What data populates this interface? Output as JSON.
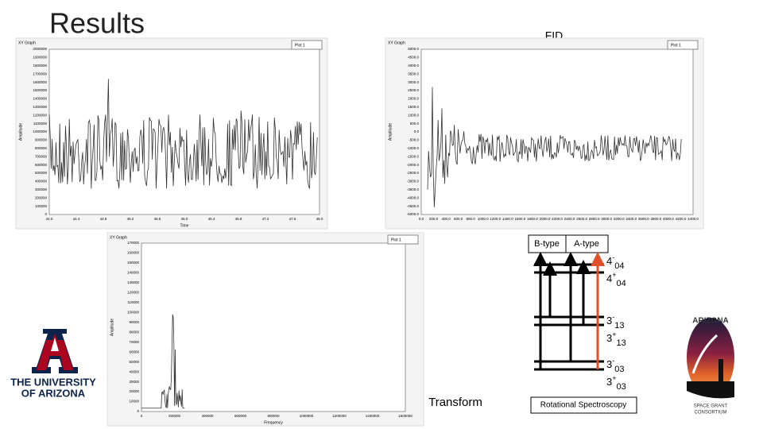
{
  "header": {
    "title": "Results"
  },
  "fid_label": "FID",
  "transform_label": "Transform",
  "plots": [
    {
      "title": "XY Graph",
      "legend": "Plot 1",
      "y_label": "Amplitude",
      "x_label": "Time",
      "yticks": [
        "0",
        "100000",
        "200000",
        "300000",
        "400000",
        "500000",
        "600000",
        "700000",
        "800000",
        "900000",
        "1000000",
        "1100000",
        "1200000",
        "1300000",
        "1400000",
        "1500000",
        "1600000",
        "1700000",
        "1800000",
        "1900000",
        "2000000"
      ],
      "xticks": [
        "44.0",
        "44.4",
        "44.8",
        "45.2",
        "45.6",
        "46.0",
        "46.4",
        "46.8",
        "47.2",
        "47.6",
        "48.0"
      ]
    },
    {
      "title": "XY Graph",
      "legend": "Plot 1",
      "y_label": "Amplitude",
      "x_label": "",
      "yticks": [
        "-5000.0",
        "-4500.0",
        "-4000.0",
        "-3500.0",
        "-3000.0",
        "-2500.0",
        "-2000.0",
        "-1500.0",
        "-1000.0",
        "-500.0",
        "0.0",
        "500.0",
        "1000.0",
        "1500.0",
        "2000.0",
        "2500.0",
        "3000.0",
        "3500.0",
        "4000.0",
        "4500.0",
        "5000.0"
      ],
      "xticks": [
        "0.0",
        "200.0",
        "400.0",
        "600.0",
        "800.0",
        "1000.0",
        "1200.0",
        "1400.0",
        "1600.0",
        "1800.0",
        "2000.0",
        "2200.0",
        "2400.0",
        "2600.0",
        "2800.0",
        "3000.0",
        "3200.0",
        "3400.0",
        "3600.0",
        "3800.0",
        "4000.0",
        "4200.0",
        "4400.0"
      ]
    },
    {
      "title": "XY Graph",
      "legend": "Plot 1",
      "y_label": "Amplitude",
      "x_label": "Frequency",
      "yticks": [
        "0",
        "10000",
        "20000",
        "30000",
        "40000",
        "50000",
        "60000",
        "70000",
        "80000",
        "90000",
        "100000",
        "110000",
        "120000",
        "130000",
        "140000",
        "150000",
        "160000",
        "170000"
      ],
      "xticks": [
        "0",
        "200000",
        "400000",
        "600000",
        "800000",
        "1000000",
        "1200000",
        "1400000",
        "1600000"
      ]
    }
  ],
  "diagram": {
    "b_type": "B-type",
    "a_type": "A-type",
    "levels": [
      {
        "main": "4",
        "sup": "-",
        "sub": "04"
      },
      {
        "main": "4",
        "sup": "+",
        "sub": "04"
      },
      {
        "main": "3",
        "sup": "-",
        "sub": "13"
      },
      {
        "main": "3",
        "sup": "+",
        "sub": "13"
      },
      {
        "main": "3",
        "sup": "-",
        "sub": "03"
      },
      {
        "main": "3",
        "sup": "+",
        "sub": "03"
      }
    ],
    "caption": "Rotational Spectroscopy"
  },
  "logos": {
    "ua_line1": "THE UNIVERSITY",
    "ua_line2": "OF ARIZONA",
    "sg_top": "ARIZONA",
    "sg_line1": "SPACE GRANT",
    "sg_line2": "CONSORTIUM"
  }
}
